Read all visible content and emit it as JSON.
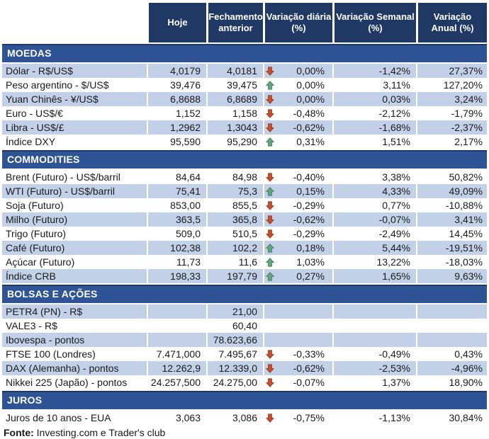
{
  "header": {
    "columns": [
      "Hoje",
      "Fechamento\nanterior",
      "Variação diária\n(%)",
      "Variação Semanal\n(%)",
      "Variação\nAnual (%)"
    ]
  },
  "chart_data": {
    "type": "table",
    "columns": [
      "",
      "Hoje",
      "Fechamento anterior",
      "Variação diária (%)",
      "Variação Semanal (%)",
      "Variação Anual (%)"
    ],
    "sections": [
      {
        "title": "MOEDAS",
        "rows": [
          {
            "label": "Dólar - R$/US$",
            "hoje": "4,0179",
            "fechamento": "4,0181",
            "arrow": "down",
            "diaria": "0,00%",
            "semanal": "-1,42%",
            "anual": "27,37%"
          },
          {
            "label": "Peso argentino - $/US$",
            "hoje": "39,476",
            "fechamento": "39,475",
            "arrow": "up",
            "diaria": "0,00%",
            "semanal": "3,11%",
            "anual": "127,20%"
          },
          {
            "label": "Yuan Chinês - ¥/US$",
            "hoje": "6,8688",
            "fechamento": "6,8689",
            "arrow": "down",
            "diaria": "0,00%",
            "semanal": "0,03%",
            "anual": "3,24%"
          },
          {
            "label": "Euro - US$/€",
            "hoje": "1,152",
            "fechamento": "1,158",
            "arrow": "down",
            "diaria": "-0,48%",
            "semanal": "-2,12%",
            "anual": "-1,79%"
          },
          {
            "label": "Libra - US$/£",
            "hoje": "1,2962",
            "fechamento": "1,3043",
            "arrow": "down",
            "diaria": "-0,62%",
            "semanal": "-1,68%",
            "anual": "-2,37%"
          },
          {
            "label": "Índice DXY",
            "hoje": "95,590",
            "fechamento": "95,290",
            "arrow": "up",
            "diaria": "0,31%",
            "semanal": "1,51%",
            "anual": "2,17%"
          }
        ]
      },
      {
        "title": "COMMODITIES",
        "rows": [
          {
            "label": "Brent (Futuro) - US$/barril",
            "hoje": "84,64",
            "fechamento": "84,98",
            "arrow": "down",
            "diaria": "-0,40%",
            "semanal": "3,38%",
            "anual": "50,82%"
          },
          {
            "label": "WTI (Futuro) - US$/barril",
            "hoje": "75,41",
            "fechamento": "75,3",
            "arrow": "up",
            "diaria": "0,15%",
            "semanal": "4,33%",
            "anual": "49,09%"
          },
          {
            "label": "Soja (Futuro)",
            "hoje": "853,00",
            "fechamento": "855,5",
            "arrow": "down",
            "diaria": "-0,29%",
            "semanal": "0,77%",
            "anual": "-10,88%"
          },
          {
            "label": "Milho (Futuro)",
            "hoje": "363,5",
            "fechamento": "365,8",
            "arrow": "down",
            "diaria": "-0,62%",
            "semanal": "-0,07%",
            "anual": "3,41%"
          },
          {
            "label": "Trigo (Futuro)",
            "hoje": "509,0",
            "fechamento": "510,5",
            "arrow": "down",
            "diaria": "-0,29%",
            "semanal": "-2,49%",
            "anual": "14,45%"
          },
          {
            "label": "Café (Futuro)",
            "hoje": "102,38",
            "fechamento": "102,2",
            "arrow": "up",
            "diaria": "0,18%",
            "semanal": "5,44%",
            "anual": "-19,51%"
          },
          {
            "label": "Açúcar (Futuro)",
            "hoje": "11,73",
            "fechamento": "11,6",
            "arrow": "up",
            "diaria": "1,03%",
            "semanal": "13,22%",
            "anual": "-18,03%"
          },
          {
            "label": "Índice CRB",
            "hoje": "198,33",
            "fechamento": "197,79",
            "arrow": "up",
            "diaria": "0,27%",
            "semanal": "1,65%",
            "anual": "9,63%"
          }
        ]
      },
      {
        "title": "BOLSAS E AÇÕES",
        "rows": [
          {
            "label": "PETR4 (PN) - R$",
            "hoje": "",
            "fechamento": "21,00",
            "arrow": "",
            "diaria": "",
            "semanal": "",
            "anual": ""
          },
          {
            "label": "VALE3 - R$",
            "hoje": "",
            "fechamento": "60,40",
            "arrow": "",
            "diaria": "",
            "semanal": "",
            "anual": ""
          },
          {
            "label": "Ibovespa - pontos",
            "hoje": "",
            "fechamento": "78.623,66",
            "arrow": "",
            "diaria": "",
            "semanal": "",
            "anual": ""
          },
          {
            "label": "FTSE 100 (Londres)",
            "hoje": "7.471,000",
            "fechamento": "7.495,67",
            "arrow": "down",
            "diaria": "-0,33%",
            "semanal": "-0,49%",
            "anual": "0,43%"
          },
          {
            "label": "DAX (Alemanha) - pontos",
            "hoje": "12.262,9",
            "fechamento": "12.339,0",
            "arrow": "down",
            "diaria": "-0,62%",
            "semanal": "-2,53%",
            "anual": "-4,96%"
          },
          {
            "label": "Nikkei 225 (Japão) - pontos",
            "hoje": "24.257,500",
            "fechamento": "24.275,00",
            "arrow": "down",
            "diaria": "-0,07%",
            "semanal": "1,37%",
            "anual": "18,90%"
          }
        ]
      },
      {
        "title": "JUROS",
        "rows": [
          {
            "label": "Juros de 10 anos - EUA",
            "hoje": "3,063",
            "fechamento": "3,086",
            "arrow": "down",
            "diaria": "-0,75%",
            "semanal": "-1,13%",
            "anual": "30,84%"
          }
        ]
      }
    ]
  },
  "footer": {
    "label": "Fonte:",
    "source": " Investing.com e Trader's club"
  },
  "colors": {
    "header_bg": "#1F3864",
    "section_bg": "#2F5496",
    "section_border": "#1F3864",
    "row_shaded": "#C3D1E8",
    "arrow_up": "#63A483",
    "arrow_up_stroke": "#3E7A5C",
    "arrow_down": "#C94F2C",
    "arrow_down_stroke": "#8C3A1F"
  }
}
